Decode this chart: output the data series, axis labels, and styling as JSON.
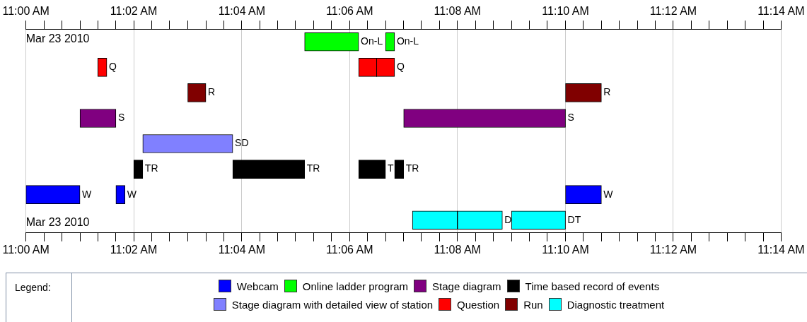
{
  "chart_data": {
    "type": "bar",
    "orientation": "horizontal",
    "xlabel": "Mar 23 2010",
    "x2label": "Mar 23 2010",
    "legend_title": "Legend:",
    "legend": "bottom",
    "grid": "x",
    "categories": [
      null,
      null,
      null,
      null,
      null,
      null,
      null,
      null
    ],
    "xlim": [
      11,
      11.2333
    ],
    "x2lim": [
      11,
      11.2333
    ],
    "xticks": [
      {
        "value": 11,
        "label": "11:00 AM"
      },
      {
        "value": 11.0056,
        "label": null
      },
      {
        "value": 11.0111,
        "label": null
      },
      {
        "value": 11.0167,
        "label": null
      },
      {
        "value": 11.0222,
        "label": null
      },
      {
        "value": 11.0278,
        "label": null
      },
      {
        "value": 11.0333,
        "label": "11:02 AM"
      },
      {
        "value": 11.0389,
        "label": null
      },
      {
        "value": 11.0444,
        "label": null
      },
      {
        "value": 11.05,
        "label": null
      },
      {
        "value": 11.0556,
        "label": null
      },
      {
        "value": 11.0611,
        "label": null
      },
      {
        "value": 11.0667,
        "label": "11:04 AM"
      },
      {
        "value": 11.0722,
        "label": null
      },
      {
        "value": 11.0778,
        "label": null
      },
      {
        "value": 11.0833,
        "label": null
      },
      {
        "value": 11.0889,
        "label": null
      },
      {
        "value": 11.0944,
        "label": null
      },
      {
        "value": 11.1,
        "label": "11:06 AM"
      },
      {
        "value": 11.1056,
        "label": null
      },
      {
        "value": 11.1111,
        "label": null
      },
      {
        "value": 11.1167,
        "label": null
      },
      {
        "value": 11.1222,
        "label": null
      },
      {
        "value": 11.1278,
        "label": null
      },
      {
        "value": 11.1333,
        "label": "11:08 AM"
      },
      {
        "value": 11.1389,
        "label": null
      },
      {
        "value": 11.1444,
        "label": null
      },
      {
        "value": 11.15,
        "label": null
      },
      {
        "value": 11.1556,
        "label": null
      },
      {
        "value": 11.1611,
        "label": null
      },
      {
        "value": 11.1667,
        "label": "11:10 AM"
      },
      {
        "value": 11.1722,
        "label": null
      },
      {
        "value": 11.1778,
        "label": null
      },
      {
        "value": 11.1833,
        "label": null
      },
      {
        "value": 11.1889,
        "label": null
      },
      {
        "value": 11.1944,
        "label": null
      },
      {
        "value": 11.2,
        "label": "11:12 AM"
      },
      {
        "value": 11.2056,
        "label": null
      },
      {
        "value": 11.2111,
        "label": null
      },
      {
        "value": 11.2167,
        "label": null
      },
      {
        "value": 11.2222,
        "label": null
      },
      {
        "value": 11.2278,
        "label": null
      },
      {
        "value": 11.2333,
        "label": "11:14 AM"
      }
    ],
    "x2ticks": [
      {
        "value": 11,
        "label": "11:00 AM"
      },
      {
        "value": 11.0056,
        "label": null
      },
      {
        "value": 11.0111,
        "label": null
      },
      {
        "value": 11.0167,
        "label": null
      },
      {
        "value": 11.0222,
        "label": null
      },
      {
        "value": 11.0278,
        "label": null
      },
      {
        "value": 11.0333,
        "label": "11:02 AM"
      },
      {
        "value": 11.0389,
        "label": null
      },
      {
        "value": 11.0444,
        "label": null
      },
      {
        "value": 11.05,
        "label": null
      },
      {
        "value": 11.0556,
        "label": null
      },
      {
        "value": 11.0611,
        "label": null
      },
      {
        "value": 11.0667,
        "label": "11:04 AM"
      },
      {
        "value": 11.0722,
        "label": null
      },
      {
        "value": 11.0778,
        "label": null
      },
      {
        "value": 11.0833,
        "label": null
      },
      {
        "value": 11.0889,
        "label": null
      },
      {
        "value": 11.0944,
        "label": null
      },
      {
        "value": 11.1,
        "label": "11:06 AM"
      },
      {
        "value": 11.1056,
        "label": null
      },
      {
        "value": 11.1111,
        "label": null
      },
      {
        "value": 11.1167,
        "label": null
      },
      {
        "value": 11.1222,
        "label": null
      },
      {
        "value": 11.1278,
        "label": null
      },
      {
        "value": 11.1333,
        "label": "11:08 AM"
      },
      {
        "value": 11.1389,
        "label": null
      },
      {
        "value": 11.1444,
        "label": null
      },
      {
        "value": 11.15,
        "label": null
      },
      {
        "value": 11.1556,
        "label": null
      },
      {
        "value": 11.1611,
        "label": null
      },
      {
        "value": 11.1667,
        "label": "11:10 AM"
      },
      {
        "value": 11.1722,
        "label": null
      },
      {
        "value": 11.1778,
        "label": null
      },
      {
        "value": 11.1833,
        "label": null
      },
      {
        "value": 11.1889,
        "label": null
      },
      {
        "value": 11.1944,
        "label": null
      },
      {
        "value": 11.2,
        "label": "11:12 AM"
      },
      {
        "value": 11.2056,
        "label": null
      },
      {
        "value": 11.2111,
        "label": null
      },
      {
        "value": 11.2167,
        "label": null
      },
      {
        "value": 11.2222,
        "label": null
      },
      {
        "value": 11.2278,
        "label": null
      },
      {
        "value": 11.2333,
        "label": "11:14 AM"
      }
    ],
    "series": [
      {
        "name": "Webcam",
        "color": "#0000ff",
        "values": [
          null,
          null,
          null,
          null,
          null,
          null,
          0.0167,
          null
        ],
        "base": [
          null,
          null,
          null,
          null,
          null,
          null,
          11,
          null
        ],
        "value_labels": [
          null,
          null,
          null,
          null,
          null,
          null,
          "W",
          null
        ]
      },
      {
        "name": "Online ladder program",
        "color": "#00ff00",
        "values": [
          0.0167,
          null,
          null,
          null,
          null,
          null,
          null,
          null
        ],
        "base": [
          11.0861,
          null,
          null,
          null,
          null,
          null,
          null,
          null
        ],
        "value_labels": [
          "On-L",
          null,
          null,
          null,
          null,
          null,
          null,
          null
        ]
      },
      {
        "name": "Stage diagram",
        "color": "#800080",
        "values": [
          null,
          null,
          null,
          0.0111,
          null,
          null,
          null,
          null
        ],
        "base": [
          null,
          null,
          null,
          11.0167,
          null,
          null,
          null,
          null
        ],
        "value_labels": [
          null,
          null,
          null,
          "S",
          null,
          null,
          null,
          null
        ]
      },
      {
        "name": "Time based record of events",
        "color": "#000000",
        "values": [
          null,
          null,
          null,
          null,
          null,
          0.0028,
          null,
          null
        ],
        "base": [
          null,
          null,
          null,
          null,
          null,
          11.0333,
          null,
          null
        ],
        "value_labels": [
          null,
          null,
          null,
          null,
          null,
          "TR",
          null,
          null
        ]
      },
      {
        "name": "Stage diagram with detailed view of station",
        "color": "#8080ff",
        "values": [
          null,
          null,
          null,
          null,
          0.0278,
          null,
          null,
          null
        ],
        "base": [
          null,
          null,
          null,
          null,
          11.0361,
          null,
          null,
          null
        ],
        "value_labels": [
          null,
          null,
          null,
          null,
          "SD",
          null,
          null,
          null
        ]
      },
      {
        "name": "Question",
        "color": "#ff0000",
        "values": [
          null,
          0.0028,
          null,
          null,
          null,
          null,
          null,
          null
        ],
        "base": [
          null,
          11.0222,
          null,
          null,
          null,
          null,
          null,
          null
        ],
        "value_labels": [
          null,
          "Q",
          null,
          null,
          null,
          null,
          null,
          null
        ]
      },
      {
        "name": "Run",
        "color": "#800000",
        "values": [
          null,
          null,
          0.0056,
          null,
          null,
          null,
          null,
          null
        ],
        "base": [
          null,
          null,
          11.05,
          null,
          null,
          null,
          null,
          null
        ],
        "value_labels": [
          null,
          null,
          "R",
          null,
          null,
          null,
          null,
          null
        ]
      },
      {
        "name": "Diagnostic treatment",
        "color": "#00ffff",
        "values": [
          null,
          null,
          null,
          null,
          null,
          null,
          null,
          0.0139
        ],
        "base": [
          null,
          null,
          null,
          null,
          null,
          null,
          null,
          11.1194
        ],
        "value_labels": [
          null,
          null,
          null,
          null,
          null,
          null,
          null,
          null
        ]
      },
      {
        "color": "#0000ff",
        "values": [
          null,
          null,
          null,
          null,
          null,
          null,
          0.0028,
          null
        ],
        "base": [
          null,
          null,
          null,
          null,
          null,
          null,
          11.0278,
          null
        ],
        "value_labels": [
          null,
          null,
          null,
          null,
          null,
          null,
          "W",
          null
        ]
      },
      {
        "color": "#0000ff",
        "values": [
          null,
          null,
          null,
          null,
          null,
          null,
          0.0111,
          null
        ],
        "base": [
          null,
          null,
          null,
          null,
          null,
          null,
          11.1667,
          null
        ],
        "value_labels": [
          null,
          null,
          null,
          null,
          null,
          null,
          "W",
          null
        ]
      },
      {
        "color": "#00ff00",
        "values": [
          0.0028,
          null,
          null,
          null,
          null,
          null,
          null,
          null
        ],
        "base": [
          11.1111,
          null,
          null,
          null,
          null,
          null,
          null,
          null
        ],
        "value_labels": [
          "On-L",
          null,
          null,
          null,
          null,
          null,
          null,
          null
        ]
      },
      {
        "color": "#800080",
        "values": [
          null,
          null,
          null,
          0.05,
          null,
          null,
          null,
          null
        ],
        "base": [
          null,
          null,
          null,
          11.1167,
          null,
          null,
          null,
          null
        ],
        "value_labels": [
          null,
          null,
          null,
          "S",
          null,
          null,
          null,
          null
        ]
      },
      {
        "color": "#000000",
        "values": [
          null,
          null,
          null,
          null,
          null,
          0.0222,
          null,
          null
        ],
        "base": [
          null,
          null,
          null,
          null,
          null,
          11.0639,
          null,
          null
        ],
        "value_labels": [
          null,
          null,
          null,
          null,
          null,
          "TR",
          null,
          null
        ]
      },
      {
        "color": "#000000",
        "values": [
          null,
          null,
          null,
          null,
          null,
          0.0083,
          null,
          null
        ],
        "base": [
          null,
          null,
          null,
          null,
          null,
          11.1028,
          null,
          null
        ],
        "value_labels": [
          null,
          null,
          null,
          null,
          null,
          "T",
          null,
          null
        ]
      },
      {
        "color": "#000000",
        "values": [
          null,
          null,
          null,
          null,
          null,
          0.0028,
          null,
          null
        ],
        "base": [
          null,
          null,
          null,
          null,
          null,
          11.1139,
          null,
          null
        ],
        "value_labels": [
          null,
          null,
          null,
          null,
          null,
          "TR",
          null,
          null
        ]
      },
      {
        "color": "#ff0000",
        "values": [
          null,
          0.0056,
          null,
          null,
          null,
          null,
          null,
          null
        ],
        "base": [
          null,
          11.1028,
          null,
          null,
          null,
          null,
          null,
          null
        ],
        "value_labels": [
          null,
          null,
          null,
          null,
          null,
          null,
          null,
          null
        ]
      },
      {
        "color": "#ff0000",
        "values": [
          null,
          0.0056,
          null,
          null,
          null,
          null,
          null,
          null
        ],
        "base": [
          null,
          11.1083,
          null,
          null,
          null,
          null,
          null,
          null
        ],
        "value_labels": [
          null,
          "Q",
          null,
          null,
          null,
          null,
          null,
          null
        ]
      },
      {
        "color": "#800000",
        "values": [
          null,
          null,
          0.0111,
          null,
          null,
          null,
          null,
          null
        ],
        "base": [
          null,
          null,
          11.1667,
          null,
          null,
          null,
          null,
          null
        ],
        "value_labels": [
          null,
          null,
          "R",
          null,
          null,
          null,
          null,
          null
        ]
      },
      {
        "color": "#00ffff",
        "values": [
          null,
          null,
          null,
          null,
          null,
          null,
          null,
          0.0139
        ],
        "base": [
          null,
          null,
          null,
          null,
          null,
          null,
          null,
          11.1333
        ],
        "value_labels": [
          null,
          null,
          null,
          null,
          null,
          null,
          null,
          "D"
        ]
      },
      {
        "color": "#00ffff",
        "values": [
          null,
          null,
          null,
          null,
          null,
          null,
          null,
          0.0167
        ],
        "base": [
          null,
          null,
          null,
          null,
          null,
          null,
          null,
          11.15
        ],
        "value_labels": [
          null,
          null,
          null,
          null,
          null,
          null,
          null,
          "DT"
        ]
      }
    ]
  }
}
